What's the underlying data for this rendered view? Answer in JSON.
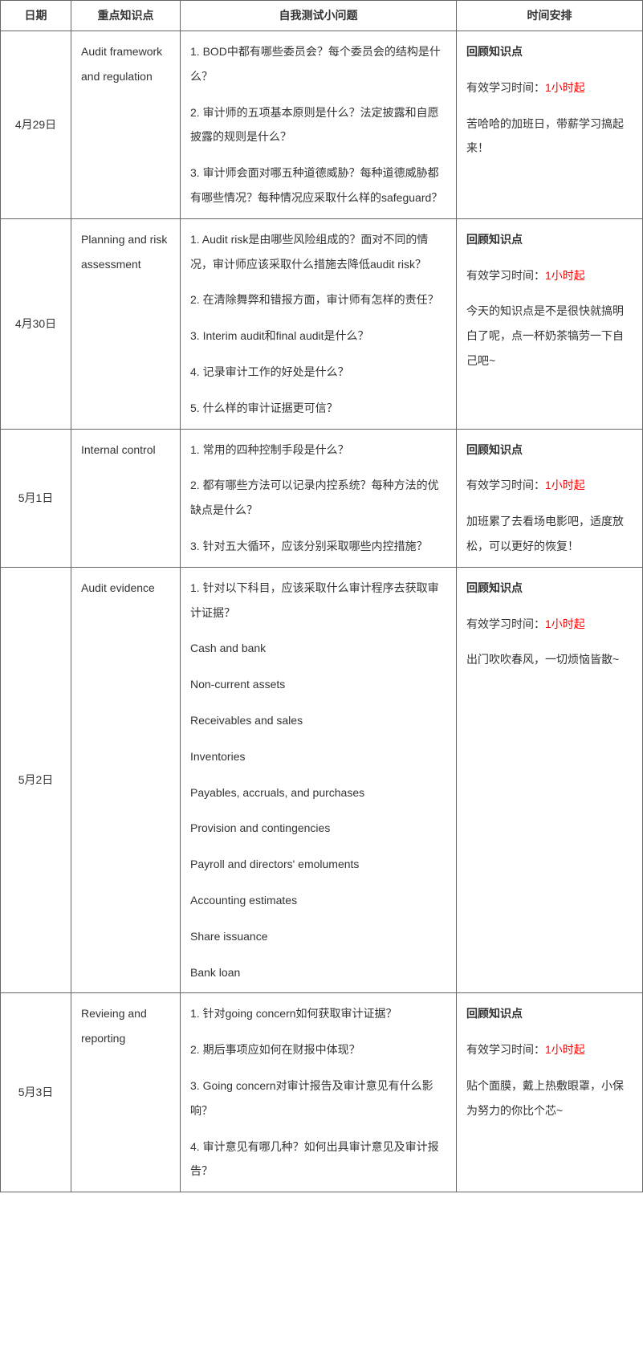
{
  "headers": {
    "date": "日期",
    "topic": "重点知识点",
    "questions": "自我测试小问题",
    "schedule": "时间安排"
  },
  "schedule_labels": {
    "review_title": "回顾知识点",
    "time_prefix": "有效学习时间：",
    "time_value": "1小时起"
  },
  "rows": [
    {
      "date": "4月29日",
      "topic": "Audit framework and regulation",
      "questions": [
        "1. BOD中都有哪些委员会？每个委员会的结构是什么？",
        "2. 审计师的五项基本原则是什么？法定披露和自愿披露的规则是什么？",
        "3. 审计师会面对哪五种道德威胁？每种道德威胁都有哪些情况？每种情况应采取什么样的safeguard？"
      ],
      "note": "苦哈哈的加班日，带薪学习搞起来！"
    },
    {
      "date": "4月30日",
      "topic": "Planning and risk assessment",
      "questions": [
        "1. Audit risk是由哪些风险组成的？面对不同的情况，审计师应该采取什么措施去降低audit risk？",
        "2. 在清除舞弊和错报方面，审计师有怎样的责任？",
        "3. Interim audit和final audit是什么？",
        "4. 记录审计工作的好处是什么？",
        "5. 什么样的审计证据更可信？"
      ],
      "note": "今天的知识点是不是很快就搞明白了呢，点一杯奶茶犒劳一下自己吧~"
    },
    {
      "date": "5月1日",
      "topic": "Internal control",
      "questions": [
        "1. 常用的四种控制手段是什么？",
        "2. 都有哪些方法可以记录内控系统？每种方法的优缺点是什么？",
        "3. 针对五大循环，应该分别采取哪些内控措施？"
      ],
      "note": "加班累了去看场电影吧，适度放松，可以更好的恢复！"
    },
    {
      "date": "5月2日",
      "topic": "Audit evidence",
      "questions": [
        "1. 针对以下科目，应该采取什么审计程序去获取审计证据？",
        "Cash and bank",
        "Non-current assets",
        "Receivables and sales",
        "Inventories",
        "Payables, accruals, and purchases",
        "Provision and contingencies",
        "Payroll and directors' emoluments",
        "Accounting estimates",
        "Share issuance",
        "Bank loan"
      ],
      "note": "出门吹吹春风，一切烦恼皆散~"
    },
    {
      "date": "5月3日",
      "topic": "Revieing and reporting",
      "questions": [
        "1. 针对going concern如何获取审计证据？",
        "2. 期后事项应如何在财报中体现？",
        "3. Going concern对审计报告及审计意见有什么影响？",
        "4. 审计意见有哪几种？如何出具审计意见及审计报告？"
      ],
      "note": "贴个面膜，戴上热敷眼罩，小保为努力的你比个芯~"
    }
  ]
}
